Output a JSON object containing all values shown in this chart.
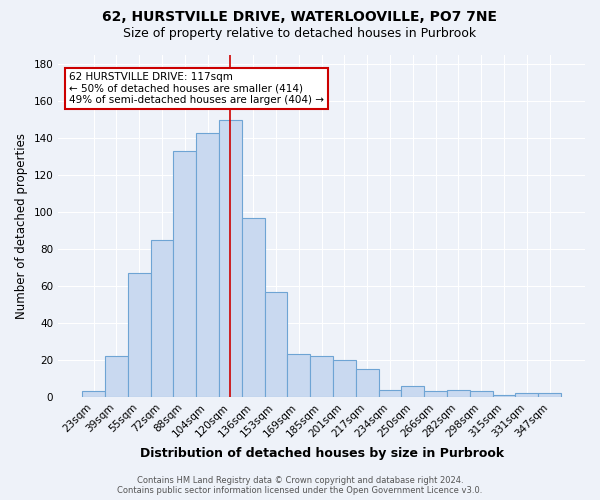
{
  "title1": "62, HURSTVILLE DRIVE, WATERLOOVILLE, PO7 7NE",
  "title2": "Size of property relative to detached houses in Purbrook",
  "xlabel": "Distribution of detached houses by size in Purbrook",
  "ylabel": "Number of detached properties",
  "categories": [
    "23sqm",
    "39sqm",
    "55sqm",
    "72sqm",
    "88sqm",
    "104sqm",
    "120sqm",
    "136sqm",
    "153sqm",
    "169sqm",
    "185sqm",
    "201sqm",
    "217sqm",
    "234sqm",
    "250sqm",
    "266sqm",
    "282sqm",
    "298sqm",
    "315sqm",
    "331sqm",
    "347sqm"
  ],
  "values": [
    3,
    22,
    67,
    85,
    133,
    143,
    150,
    97,
    57,
    23,
    22,
    20,
    15,
    4,
    6,
    3,
    4,
    3,
    1,
    2,
    2
  ],
  "bar_color": "#c9d9f0",
  "bar_edge_color": "#6ea4d4",
  "vline_x_index": 6,
  "annotation_text": "62 HURSTVILLE DRIVE: 117sqm\n← 50% of detached houses are smaller (414)\n49% of semi-detached houses are larger (404) →",
  "annotation_box_color": "#ffffff",
  "annotation_box_edge_color": "#cc0000",
  "vline_color": "#cc0000",
  "footer1": "Contains HM Land Registry data © Crown copyright and database right 2024.",
  "footer2": "Contains public sector information licensed under the Open Government Licence v3.0.",
  "ylim": [
    0,
    185
  ],
  "bg_color": "#eef2f9",
  "grid_color": "#ffffff",
  "title1_fontsize": 10,
  "title2_fontsize": 9,
  "xlabel_fontsize": 9,
  "ylabel_fontsize": 8.5,
  "tick_fontsize": 7.5,
  "footer_fontsize": 6
}
